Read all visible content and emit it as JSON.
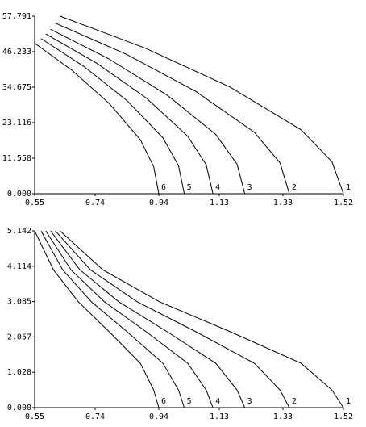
{
  "chart_data": [
    {
      "type": "line",
      "xlim": [
        0.55,
        1.52
      ],
      "ylim": [
        0,
        57.791
      ],
      "xticks": [
        0.55,
        0.74,
        0.94,
        1.13,
        1.33,
        1.52
      ],
      "yticks": [
        {
          "value": 0,
          "label": "0.000"
        },
        {
          "value": 11.558,
          "label": "11.558"
        },
        {
          "value": 23.116,
          "label": "23.116"
        },
        {
          "value": 34.675,
          "label": "34.675"
        },
        {
          "value": 46.233,
          "label": "46.233"
        },
        {
          "value": 57.791,
          "label": "57.791"
        }
      ],
      "series": [
        {
          "name": "1",
          "color": "#000000",
          "x": [
            0.63,
            0.897,
            1.164,
            1.387,
            1.484,
            1.52
          ],
          "values": [
            57.8,
            47.4,
            34.7,
            20.8,
            10.4,
            0
          ]
        },
        {
          "name": "2",
          "color": "#000000",
          "x": [
            0.615,
            0.836,
            1.056,
            1.24,
            1.321,
            1.35
          ],
          "values": [
            55.5,
            45.5,
            33.3,
            20.0,
            10.0,
            0
          ]
        },
        {
          "name": "3",
          "color": "#000000",
          "x": [
            0.6,
            0.783,
            0.966,
            1.119,
            1.186,
            1.21
          ],
          "values": [
            53.5,
            43.9,
            32.1,
            19.3,
            9.6,
            0
          ]
        },
        {
          "name": "4",
          "color": "#000000",
          "x": [
            0.585,
            0.743,
            0.9,
            1.031,
            1.089,
            1.11
          ],
          "values": [
            52,
            42.6,
            31.2,
            18.7,
            9.4,
            0
          ]
        },
        {
          "name": "5",
          "color": "#000000",
          "x": [
            0.57,
            0.705,
            0.84,
            0.953,
            1.002,
            1.02
          ],
          "values": [
            50.5,
            41.4,
            30.3,
            18.2,
            9.1,
            0
          ]
        },
        {
          "name": "6",
          "color": "#000000",
          "x": [
            0.55,
            0.667,
            0.784,
            0.882,
            0.924,
            0.94
          ],
          "values": [
            49,
            40.2,
            29.4,
            17.6,
            8.8,
            0
          ]
        }
      ]
    },
    {
      "type": "line",
      "xlim": [
        0.55,
        1.52
      ],
      "ylim": [
        0,
        5.142
      ],
      "xticks": [
        0.55,
        0.74,
        0.94,
        1.13,
        1.33,
        1.52
      ],
      "yticks": [
        {
          "value": 0,
          "label": "0.000"
        },
        1.028,
        2.057,
        3.085,
        4.114,
        5.142
      ],
      "series": [
        {
          "name": "1",
          "color": "#000000",
          "x": [
            0.63,
            0.764,
            0.942,
            1.164,
            1.387,
            1.484,
            1.52
          ],
          "values": [
            5.14,
            4.01,
            3.08,
            2.21,
            1.29,
            0.51,
            0
          ]
        },
        {
          "name": "2",
          "color": "#000000",
          "x": [
            0.615,
            0.725,
            0.872,
            1.056,
            1.24,
            1.321,
            1.35
          ],
          "values": [
            5.14,
            4.01,
            3.08,
            2.21,
            1.29,
            0.51,
            0
          ]
        },
        {
          "name": "3",
          "color": "#000000",
          "x": [
            0.6,
            0.692,
            0.814,
            0.966,
            1.119,
            1.186,
            1.21
          ],
          "values": [
            5.14,
            4.01,
            3.08,
            2.21,
            1.29,
            0.51,
            0
          ]
        },
        {
          "name": "4",
          "color": "#000000",
          "x": [
            0.585,
            0.664,
            0.769,
            0.9,
            1.031,
            1.089,
            1.11
          ],
          "values": [
            5.14,
            4.01,
            3.08,
            2.21,
            1.29,
            0.51,
            0
          ]
        },
        {
          "name": "5",
          "color": "#000000",
          "x": [
            0.57,
            0.638,
            0.728,
            0.84,
            0.953,
            1.002,
            1.02
          ],
          "values": [
            5.14,
            4.01,
            3.08,
            2.21,
            1.29,
            0.51,
            0
          ]
        },
        {
          "name": "6",
          "color": "#000000",
          "x": [
            0.55,
            0.609,
            0.687,
            0.784,
            0.882,
            0.924,
            0.94
          ],
          "values": [
            5.14,
            4.01,
            3.08,
            2.21,
            1.29,
            0.51,
            0
          ]
        }
      ]
    }
  ]
}
